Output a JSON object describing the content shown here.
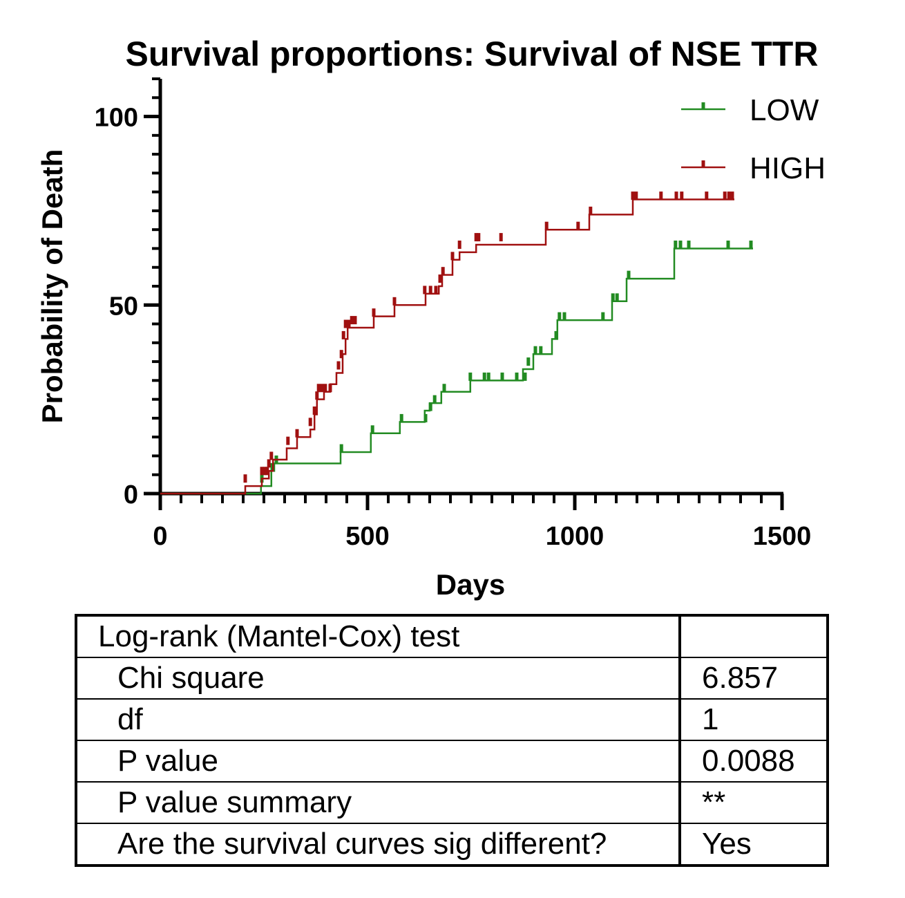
{
  "chart_data": {
    "type": "line",
    "subtype": "kaplan-meier step",
    "title": "Survival proportions: Survival of NSE TTR",
    "xlabel": "Days",
    "ylabel": "Probability of Death",
    "xlim": [
      0,
      1500
    ],
    "ylim": [
      0,
      110
    ],
    "x_ticks": [
      0,
      500,
      1000,
      1500
    ],
    "y_ticks": [
      0,
      50,
      100
    ],
    "grid": false,
    "legend_position": "top-right",
    "series": [
      {
        "name": "LOW",
        "color": "#228b22",
        "steps": [
          [
            0,
            0
          ],
          [
            243,
            0
          ],
          [
            243,
            2
          ],
          [
            268,
            2
          ],
          [
            268,
            6
          ],
          [
            275,
            6
          ],
          [
            275,
            8
          ],
          [
            435,
            8
          ],
          [
            435,
            11
          ],
          [
            508,
            11
          ],
          [
            508,
            16
          ],
          [
            578,
            16
          ],
          [
            578,
            19
          ],
          [
            638,
            19
          ],
          [
            638,
            22
          ],
          [
            650,
            22
          ],
          [
            650,
            24
          ],
          [
            678,
            24
          ],
          [
            678,
            27
          ],
          [
            748,
            27
          ],
          [
            748,
            30
          ],
          [
            875,
            30
          ],
          [
            875,
            33
          ],
          [
            900,
            33
          ],
          [
            900,
            37
          ],
          [
            945,
            37
          ],
          [
            945,
            41
          ],
          [
            958,
            41
          ],
          [
            958,
            46
          ],
          [
            1090,
            46
          ],
          [
            1090,
            51
          ],
          [
            1125,
            51
          ],
          [
            1125,
            57
          ],
          [
            1240,
            57
          ],
          [
            1240,
            65
          ],
          [
            1430,
            65
          ]
        ],
        "censored": [
          [
            245,
            4
          ],
          [
            270,
            7
          ],
          [
            280,
            9
          ],
          [
            437,
            12
          ],
          [
            512,
            17
          ],
          [
            582,
            20
          ],
          [
            640,
            20
          ],
          [
            652,
            23
          ],
          [
            662,
            25
          ],
          [
            685,
            28
          ],
          [
            748,
            31
          ],
          [
            782,
            31
          ],
          [
            792,
            31
          ],
          [
            825,
            31
          ],
          [
            860,
            31
          ],
          [
            880,
            31
          ],
          [
            888,
            35
          ],
          [
            905,
            38
          ],
          [
            918,
            38
          ],
          [
            955,
            42
          ],
          [
            963,
            47
          ],
          [
            975,
            47
          ],
          [
            1068,
            47
          ],
          [
            1092,
            52
          ],
          [
            1102,
            52
          ],
          [
            1130,
            58
          ],
          [
            1243,
            66
          ],
          [
            1255,
            66
          ],
          [
            1275,
            66
          ],
          [
            1370,
            66
          ],
          [
            1425,
            66
          ]
        ]
      },
      {
        "name": "HIGH",
        "color": "#a01010",
        "steps": [
          [
            0,
            0
          ],
          [
            205,
            0
          ],
          [
            205,
            2
          ],
          [
            245,
            2
          ],
          [
            245,
            4
          ],
          [
            262,
            4
          ],
          [
            262,
            6
          ],
          [
            272,
            6
          ],
          [
            272,
            9
          ],
          [
            305,
            9
          ],
          [
            305,
            12
          ],
          [
            330,
            12
          ],
          [
            330,
            15
          ],
          [
            362,
            15
          ],
          [
            362,
            17
          ],
          [
            372,
            17
          ],
          [
            372,
            21
          ],
          [
            378,
            21
          ],
          [
            378,
            25
          ],
          [
            395,
            25
          ],
          [
            395,
            27
          ],
          [
            410,
            27
          ],
          [
            410,
            29
          ],
          [
            425,
            29
          ],
          [
            425,
            32
          ],
          [
            440,
            32
          ],
          [
            440,
            37
          ],
          [
            447,
            37
          ],
          [
            447,
            41
          ],
          [
            452,
            41
          ],
          [
            452,
            44
          ],
          [
            515,
            44
          ],
          [
            515,
            47
          ],
          [
            565,
            47
          ],
          [
            565,
            50
          ],
          [
            640,
            50
          ],
          [
            640,
            53
          ],
          [
            672,
            53
          ],
          [
            672,
            55
          ],
          [
            680,
            55
          ],
          [
            680,
            58
          ],
          [
            705,
            58
          ],
          [
            705,
            62
          ],
          [
            722,
            62
          ],
          [
            722,
            64
          ],
          [
            762,
            64
          ],
          [
            762,
            66
          ],
          [
            930,
            66
          ],
          [
            930,
            70
          ],
          [
            1035,
            70
          ],
          [
            1035,
            74
          ],
          [
            1140,
            74
          ],
          [
            1140,
            78
          ],
          [
            1385,
            78
          ]
        ],
        "censored": [
          [
            205,
            4
          ],
          [
            245,
            6
          ],
          [
            252,
            6
          ],
          [
            258,
            6
          ],
          [
            262,
            8
          ],
          [
            268,
            10
          ],
          [
            308,
            14
          ],
          [
            330,
            16
          ],
          [
            362,
            19
          ],
          [
            372,
            22
          ],
          [
            378,
            26
          ],
          [
            382,
            28
          ],
          [
            390,
            28
          ],
          [
            398,
            28
          ],
          [
            410,
            28
          ],
          [
            430,
            34
          ],
          [
            437,
            37
          ],
          [
            442,
            42
          ],
          [
            447,
            45
          ],
          [
            455,
            45
          ],
          [
            462,
            46
          ],
          [
            470,
            46
          ],
          [
            515,
            48
          ],
          [
            565,
            51
          ],
          [
            638,
            54
          ],
          [
            652,
            54
          ],
          [
            665,
            54
          ],
          [
            675,
            57
          ],
          [
            682,
            59
          ],
          [
            705,
            63
          ],
          [
            722,
            66
          ],
          [
            762,
            68
          ],
          [
            768,
            68
          ],
          [
            822,
            68
          ],
          [
            932,
            71
          ],
          [
            1008,
            71
          ],
          [
            1038,
            75
          ],
          [
            1140,
            79
          ],
          [
            1148,
            79
          ],
          [
            1208,
            79
          ],
          [
            1245,
            79
          ],
          [
            1258,
            79
          ],
          [
            1318,
            79
          ],
          [
            1362,
            79
          ],
          [
            1372,
            79
          ],
          [
            1380,
            79
          ]
        ]
      }
    ]
  },
  "stats_table": {
    "header": "Log-rank (Mantel-Cox) test",
    "header_value": "",
    "rows": [
      {
        "label": "Chi square",
        "value": "6.857"
      },
      {
        "label": "df",
        "value": "1"
      },
      {
        "label": "P value",
        "value": "0.0088"
      },
      {
        "label": "P value summary",
        "value": "**"
      },
      {
        "label": "Are the survival curves sig different?",
        "value": "Yes"
      }
    ]
  }
}
